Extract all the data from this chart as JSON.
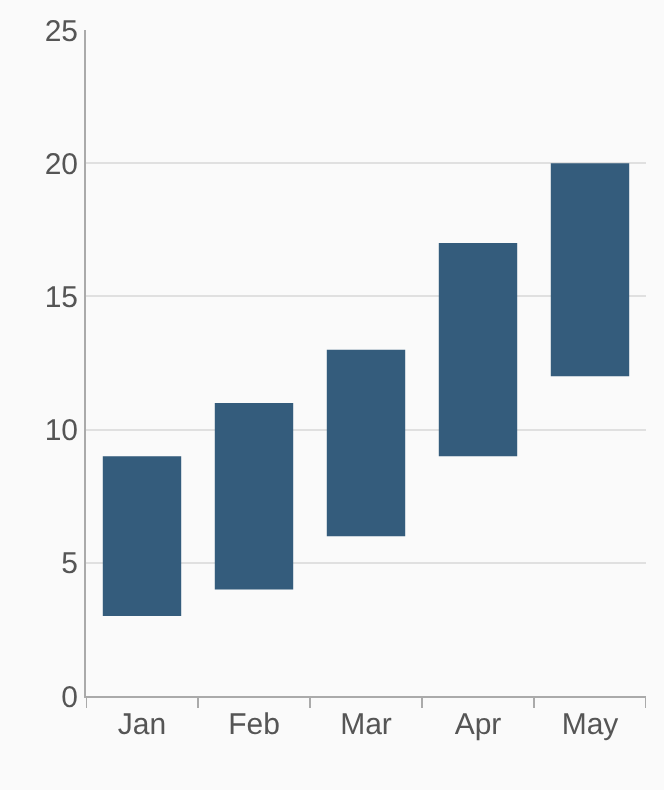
{
  "chart_data": {
    "type": "bar",
    "categories": [
      "Jan",
      "Feb",
      "Mar",
      "Apr",
      "May"
    ],
    "base": [
      3,
      4,
      6,
      9,
      12
    ],
    "values": [
      6,
      7,
      7,
      8,
      8
    ],
    "color": "#345c7c",
    "ylim": [
      0,
      25
    ],
    "yticks": [
      0,
      5,
      10,
      15,
      20,
      25
    ],
    "grid": "y"
  }
}
